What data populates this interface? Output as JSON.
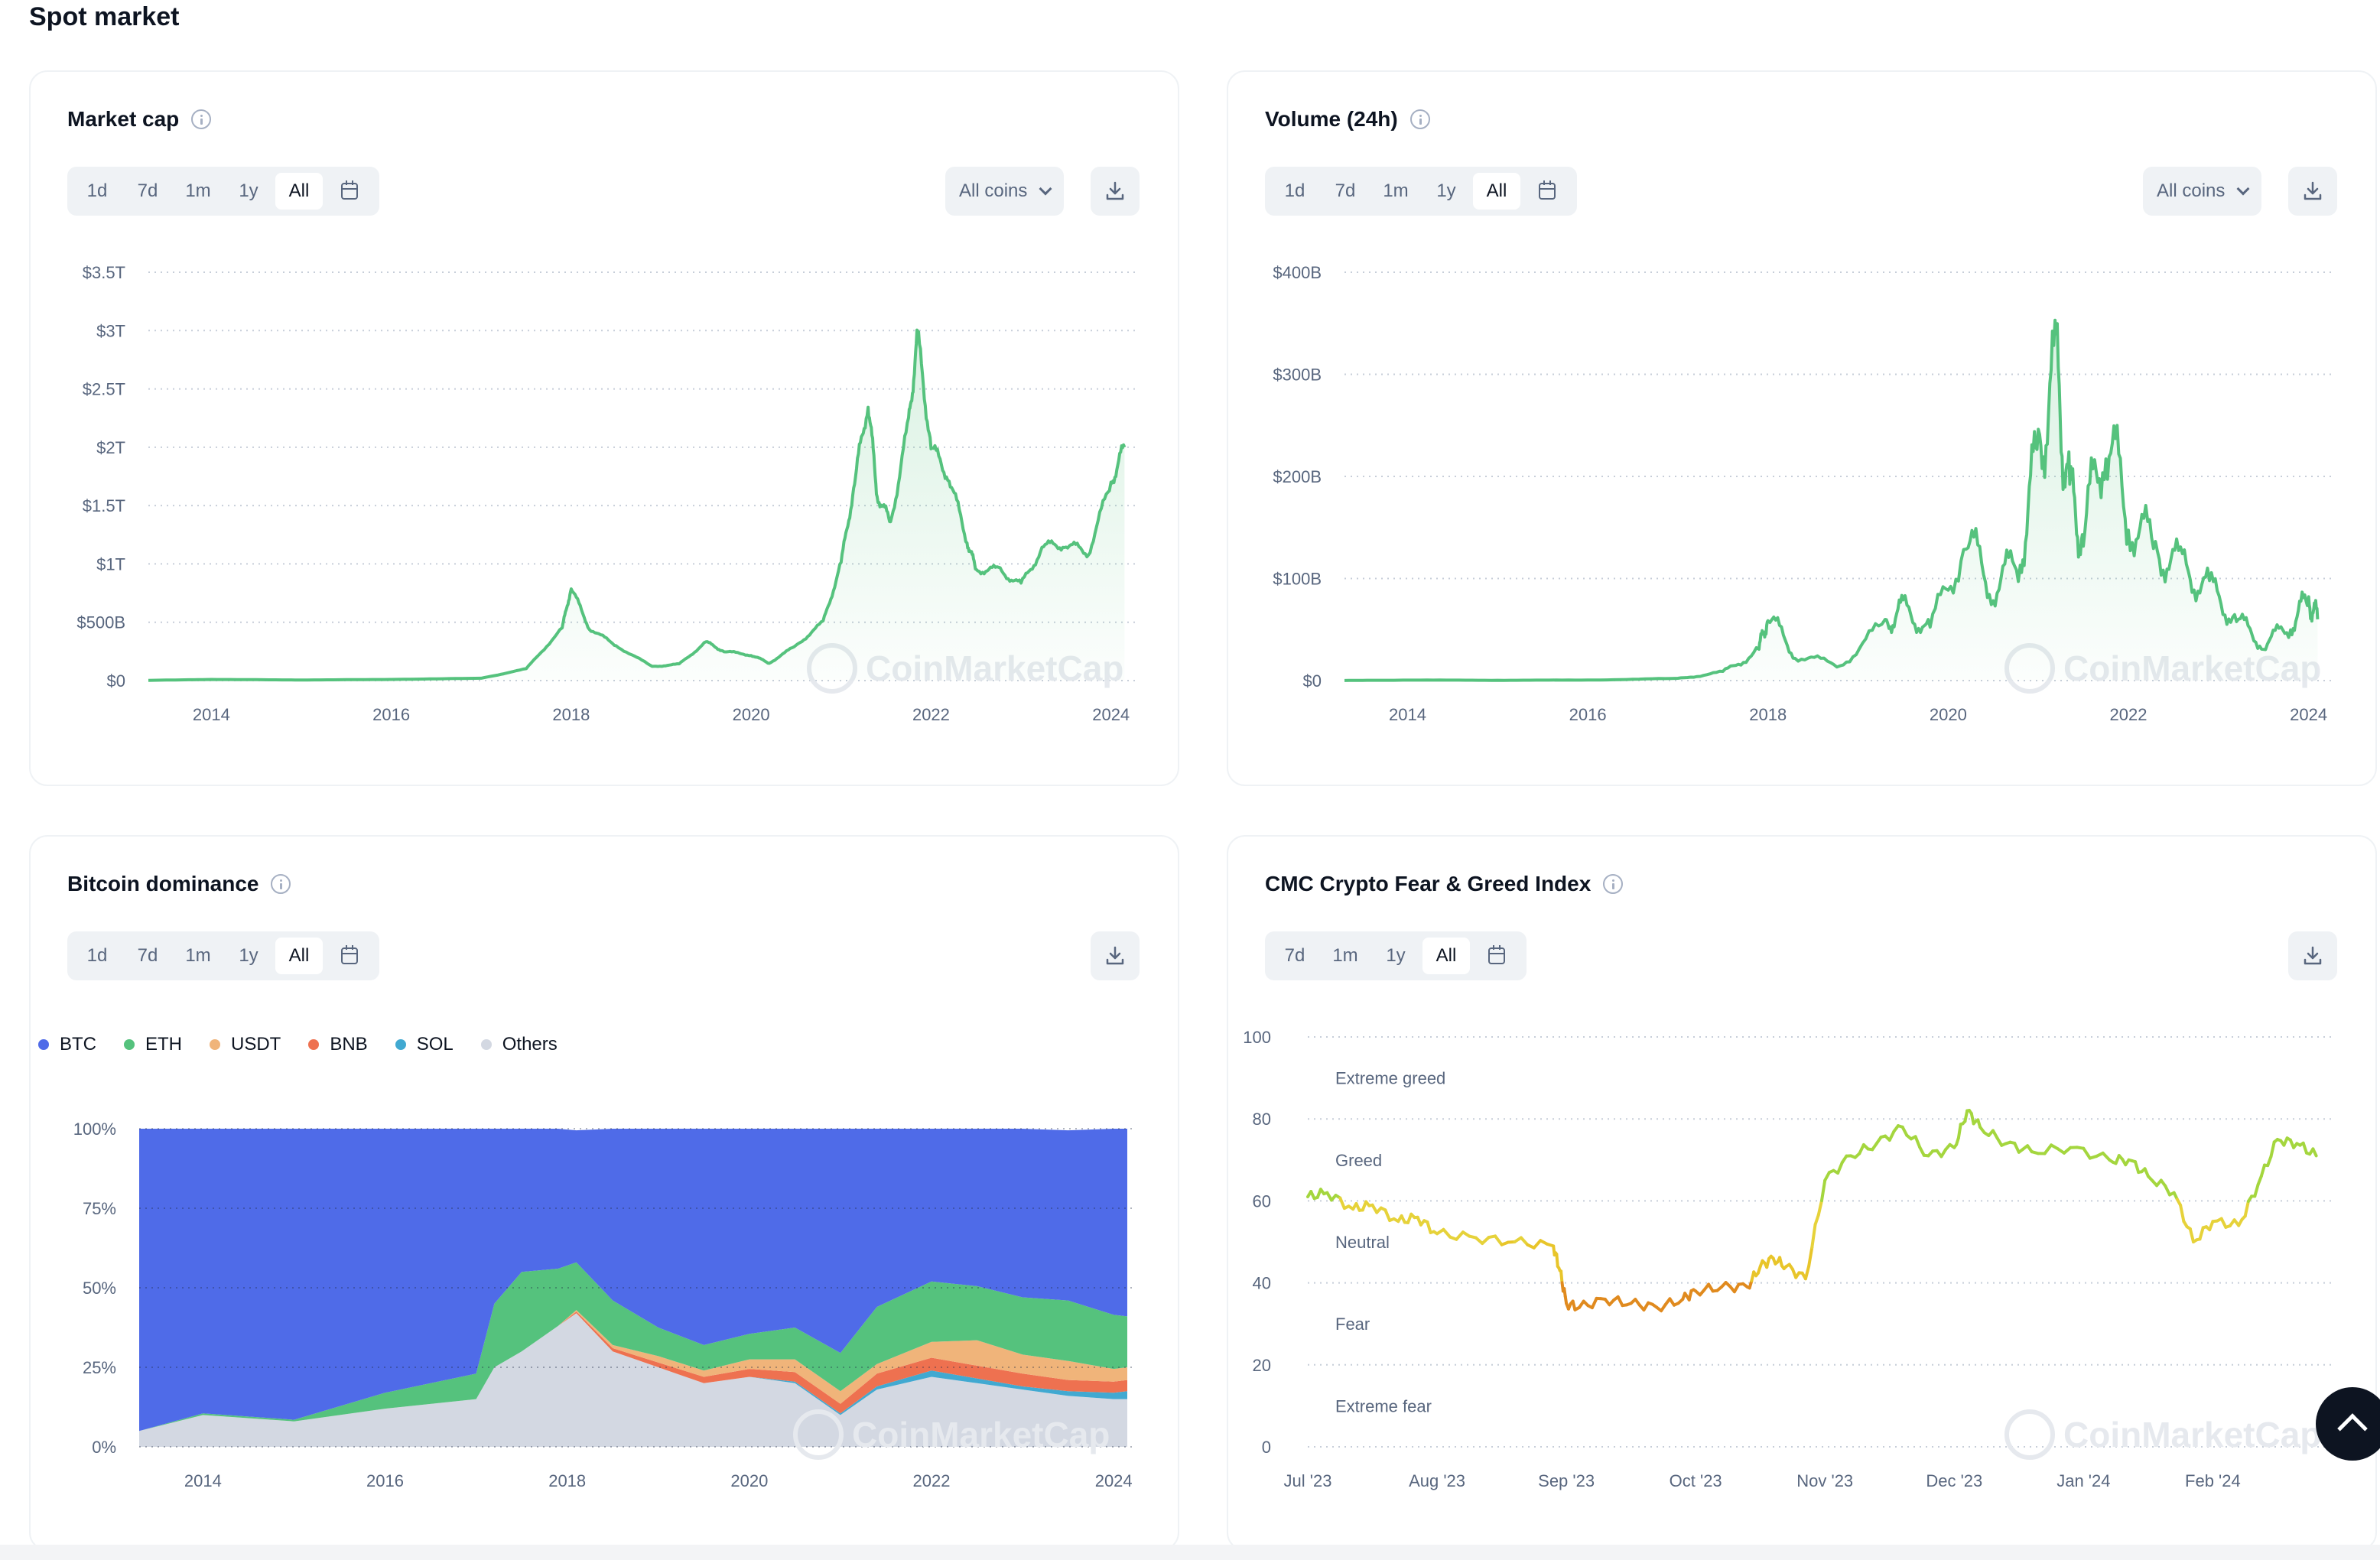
{
  "page_title": "Spot market",
  "cards": {
    "market_cap": {
      "title": "Market cap",
      "tabs": [
        "1d",
        "7d",
        "1m",
        "1y",
        "All"
      ],
      "active_tab": "All",
      "coin_select": "All coins"
    },
    "volume": {
      "title": "Volume (24h)",
      "tabs": [
        "1d",
        "7d",
        "1m",
        "1y",
        "All"
      ],
      "active_tab": "All",
      "coin_select": "All coins"
    },
    "dominance": {
      "title": "Bitcoin dominance",
      "tabs": [
        "1d",
        "7d",
        "1m",
        "1y",
        "All"
      ],
      "active_tab": "All",
      "legend": [
        {
          "label": "BTC",
          "color": "#4f6be8"
        },
        {
          "label": "ETH",
          "color": "#55c27d"
        },
        {
          "label": "USDT",
          "color": "#f0b47a"
        },
        {
          "label": "BNB",
          "color": "#ee7150"
        },
        {
          "label": "SOL",
          "color": "#41a9d1"
        },
        {
          "label": "Others",
          "color": "#d3d8e2"
        }
      ]
    },
    "fear_greed": {
      "title": "CMC Crypto Fear & Greed Index",
      "tabs": [
        "7d",
        "1m",
        "1y",
        "All"
      ],
      "active_tab": "All",
      "zones": [
        "Extreme greed",
        "Greed",
        "Neutral",
        "Fear",
        "Extreme fear"
      ]
    }
  },
  "watermark": "CoinMarketCap",
  "icons": {
    "info": "info-icon",
    "calendar": "calendar-icon",
    "download": "download-icon",
    "dropdown": "chevron-down-icon",
    "scroll_top": "arrow-up-icon"
  },
  "chart_data": [
    {
      "type": "area",
      "title": "Market cap",
      "x_ticks": [
        "2014",
        "2016",
        "2018",
        "2020",
        "2022",
        "2024"
      ],
      "y_ticks": [
        "$0",
        "$500B",
        "$1T",
        "$1.5T",
        "$2T",
        "$2.5T",
        "$3T",
        "$3.5T"
      ],
      "ylim": [
        0,
        3.5
      ],
      "y_unit": "T",
      "x": [
        2013.3,
        2014,
        2015,
        2016,
        2017,
        2017.5,
        2017.9,
        2018.0,
        2018.2,
        2018.5,
        2018.9,
        2019.2,
        2019.5,
        2019.7,
        2020.0,
        2020.2,
        2020.5,
        2020.8,
        2021.0,
        2021.15,
        2021.3,
        2021.4,
        2021.55,
        2021.75,
        2021.85,
        2022.0,
        2022.2,
        2022.4,
        2022.5,
        2022.75,
        2023.0,
        2023.25,
        2023.5,
        2023.75,
        2024.0,
        2024.15
      ],
      "values": [
        0.002,
        0.01,
        0.005,
        0.01,
        0.02,
        0.1,
        0.45,
        0.8,
        0.45,
        0.3,
        0.12,
        0.14,
        0.33,
        0.25,
        0.22,
        0.15,
        0.3,
        0.5,
        1.0,
        1.7,
        2.4,
        1.6,
        1.35,
        2.2,
        2.95,
        2.0,
        1.75,
        1.2,
        0.95,
        0.95,
        0.82,
        1.15,
        1.17,
        1.1,
        1.7,
        2.0
      ]
    },
    {
      "type": "area",
      "title": "Volume (24h)",
      "x_ticks": [
        "2014",
        "2016",
        "2018",
        "2020",
        "2022",
        "2024"
      ],
      "y_ticks": [
        "$0",
        "$100B",
        "$200B",
        "$300B",
        "$400B"
      ],
      "ylim": [
        0,
        400
      ],
      "y_unit": "B",
      "x": [
        2013.3,
        2014,
        2015,
        2016,
        2017,
        2017.5,
        2017.9,
        2018.0,
        2018.3,
        2018.8,
        2019.3,
        2019.5,
        2019.8,
        2020.2,
        2020.5,
        2020.8,
        2021.0,
        2021.2,
        2021.35,
        2021.5,
        2021.75,
        2022.0,
        2022.3,
        2022.6,
        2022.9,
        2023.2,
        2023.5,
        2023.8,
        2024.0,
        2024.1
      ],
      "values": [
        0.1,
        0.5,
        0.3,
        0.5,
        2,
        8,
        30,
        65,
        25,
        15,
        55,
        70,
        50,
        140,
        90,
        120,
        230,
        300,
        180,
        140,
        250,
        160,
        130,
        110,
        90,
        60,
        35,
        55,
        80,
        60
      ]
    },
    {
      "type": "area",
      "title": "Bitcoin dominance",
      "stacked": true,
      "x_ticks": [
        "2014",
        "2016",
        "2018",
        "2020",
        "2022",
        "2024"
      ],
      "y_ticks": [
        "0%",
        "25%",
        "50%",
        "75%",
        "100%"
      ],
      "ylim": [
        0,
        100
      ],
      "x": [
        2013.3,
        2014.0,
        2015.0,
        2016.0,
        2017.0,
        2017.2,
        2017.5,
        2017.9,
        2018.1,
        2018.5,
        2019.0,
        2019.5,
        2020.0,
        2020.5,
        2021.0,
        2021.4,
        2022.0,
        2022.5,
        2023.0,
        2023.5,
        2024.0,
        2024.15
      ],
      "series": [
        {
          "name": "Others",
          "values": [
            5,
            10,
            8,
            12,
            15,
            25,
            30,
            38,
            42,
            30,
            25,
            20,
            22,
            20,
            10,
            18,
            22,
            20,
            18,
            16,
            15,
            15
          ]
        },
        {
          "name": "SOL",
          "values": [
            0,
            0,
            0,
            0,
            0,
            0,
            0,
            0,
            0,
            0,
            0,
            0,
            0,
            0.5,
            0.5,
            1,
            2,
            1.5,
            1,
            1.5,
            2,
            2.5
          ]
        },
        {
          "name": "BNB",
          "values": [
            0,
            0,
            0,
            0,
            0,
            0,
            0,
            0,
            0.5,
            1,
            1.5,
            2,
            2.5,
            3,
            3,
            4,
            4,
            4,
            4,
            3.5,
            3.5,
            3.5
          ]
        },
        {
          "name": "USDT",
          "values": [
            0,
            0,
            0,
            0,
            0,
            0,
            0,
            0,
            0.5,
            1,
            2,
            2,
            3,
            4,
            4,
            3,
            5,
            8,
            6,
            6,
            4,
            4
          ]
        },
        {
          "name": "ETH",
          "values": [
            0,
            0.5,
            0.5,
            5,
            8,
            20,
            25,
            18,
            15,
            14,
            9,
            8,
            8,
            10,
            12,
            18,
            19,
            17,
            18,
            19,
            17,
            16
          ]
        },
        {
          "name": "BTC",
          "values": [
            95,
            89.5,
            91.5,
            83,
            77,
            55,
            45,
            44,
            41.5,
            54,
            62.5,
            68,
            64.5,
            62.5,
            70.5,
            56,
            48,
            49.5,
            53,
            53.5,
            58.5,
            59
          ]
        }
      ]
    },
    {
      "type": "line",
      "title": "CMC Crypto Fear & Greed Index",
      "x_ticks": [
        "Jul '23",
        "Aug '23",
        "Sep '23",
        "Oct '23",
        "Nov '23",
        "Dec '23",
        "Jan '24",
        "Feb '24"
      ],
      "y_ticks": [
        "0",
        "20",
        "40",
        "60",
        "80",
        "100"
      ],
      "ylim": [
        0,
        100
      ],
      "x": [
        0,
        0.15,
        0.35,
        0.5,
        0.7,
        0.85,
        1.0,
        1.3,
        1.6,
        1.9,
        1.95,
        2.0,
        2.1,
        2.3,
        2.5,
        2.7,
        2.9,
        3.0,
        3.2,
        3.4,
        3.5,
        3.6,
        3.7,
        3.85,
        4.0,
        4.2,
        4.4,
        4.6,
        4.8,
        5.0,
        5.1,
        5.2,
        5.4,
        5.6,
        5.9,
        6.2,
        6.35,
        6.5,
        6.7,
        6.85,
        7.0,
        7.2,
        7.35,
        7.5,
        7.65,
        7.8
      ],
      "values": [
        61,
        62,
        58,
        59,
        55,
        56,
        52,
        51,
        50,
        49,
        43,
        35,
        34,
        36,
        35,
        34,
        36,
        38,
        39,
        39,
        44,
        46,
        44,
        41,
        65,
        71,
        74,
        78,
        71,
        73,
        82,
        78,
        74,
        72,
        73,
        70,
        70,
        66,
        62,
        50,
        55,
        54,
        64,
        75,
        74,
        71
      ]
    }
  ]
}
